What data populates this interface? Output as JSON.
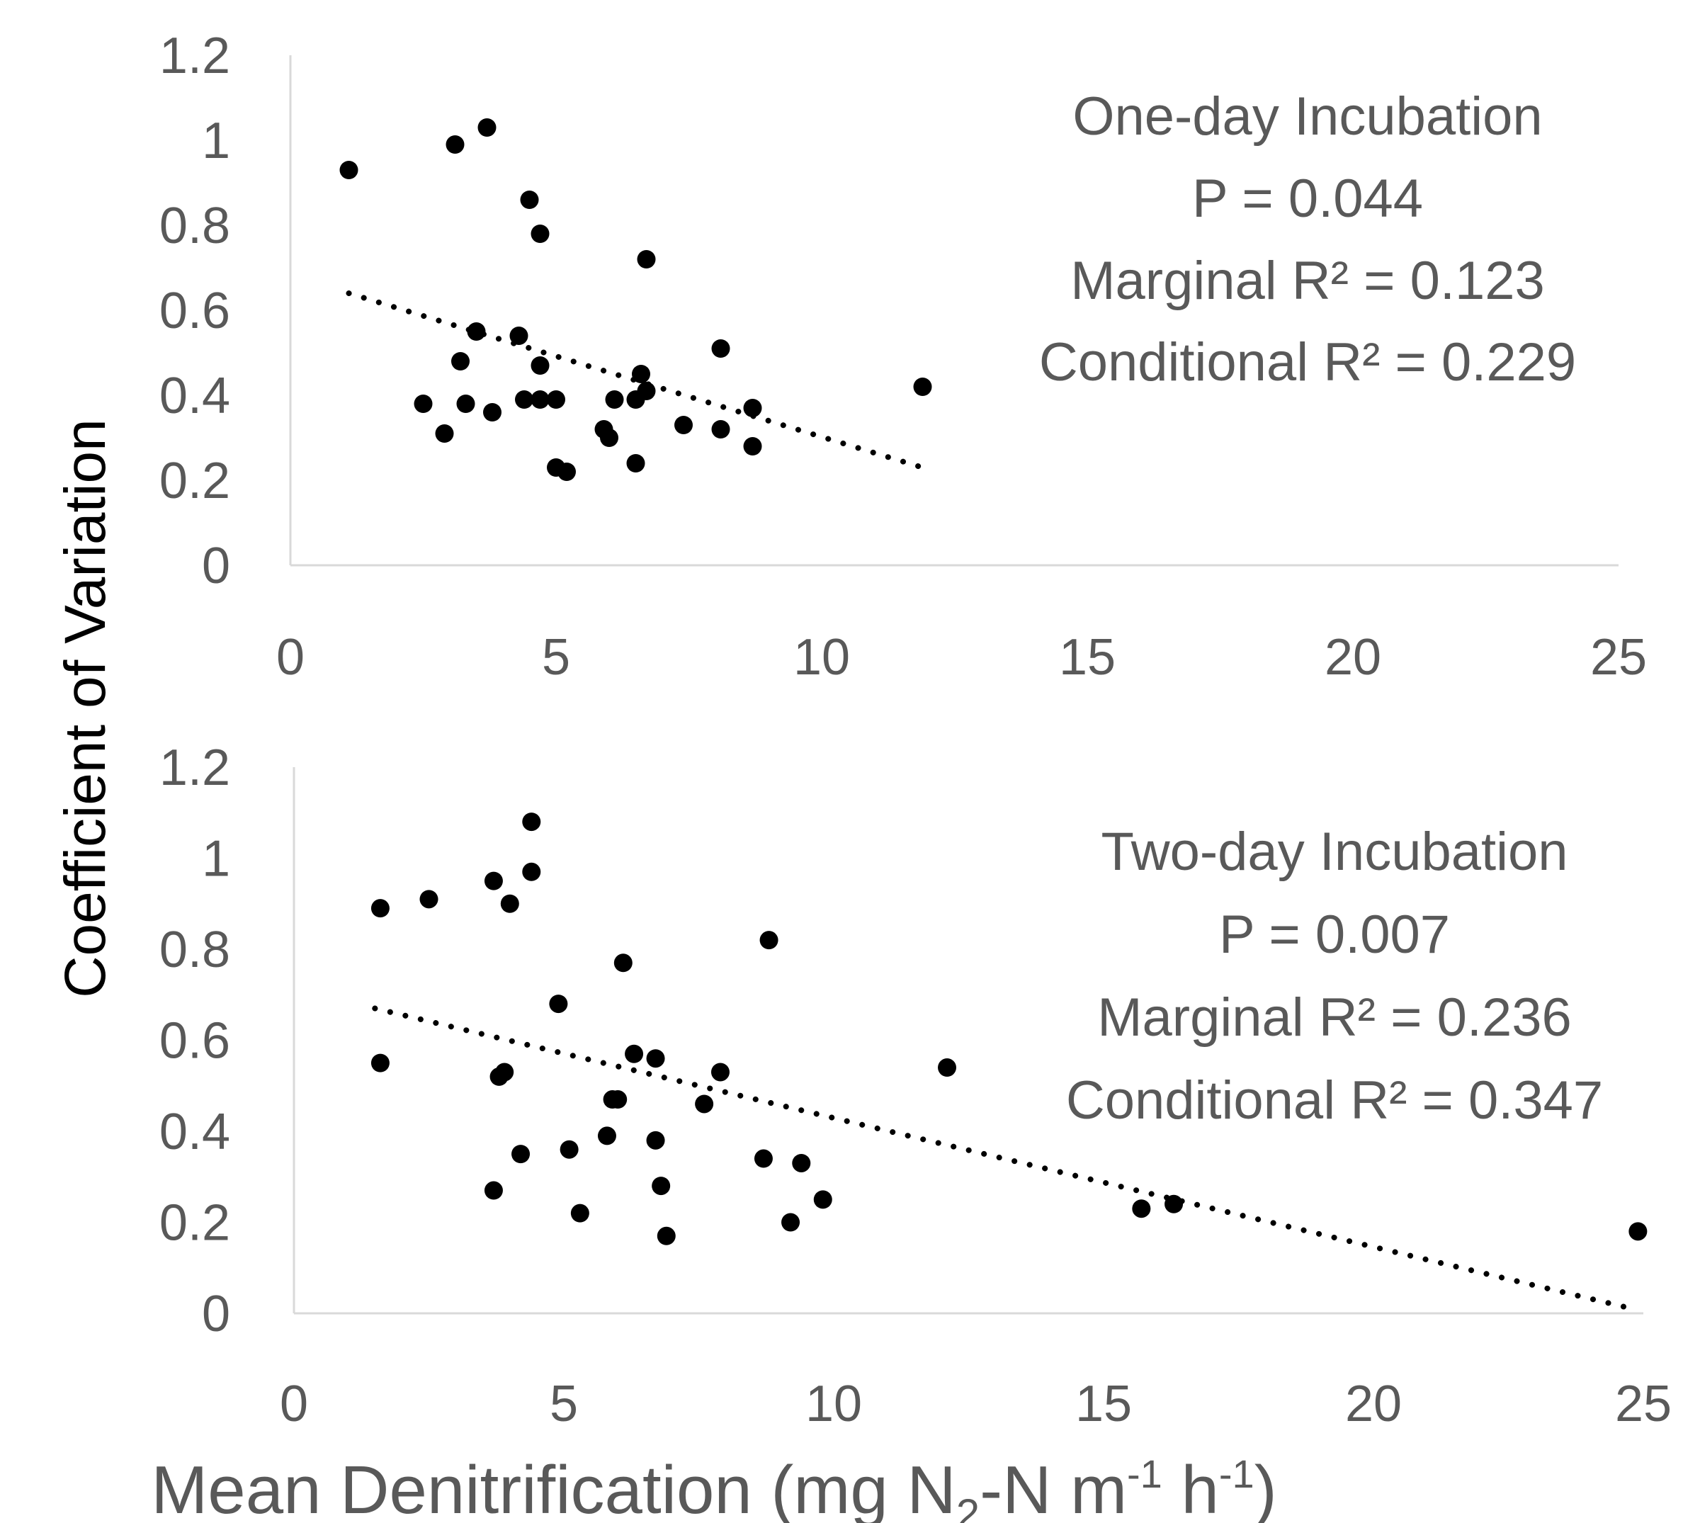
{
  "y_axis_title": "Coefficient of Variation",
  "x_axis_title": {
    "main": "Mean Denitrification (mg N",
    "sub": "2",
    "mid": "-N m",
    "sup1": "-1",
    "mid2": " h",
    "sup2": "-1",
    "end": ")"
  },
  "chart_data": [
    {
      "type": "scatter",
      "panel": "top",
      "xlim": [
        0,
        25
      ],
      "ylim": [
        0,
        1.2
      ],
      "xticks": [
        "0",
        "5",
        "10",
        "15",
        "20",
        "25"
      ],
      "yticks": [
        "0",
        "0.2",
        "0.4",
        "0.6",
        "0.8",
        "1",
        "1.2"
      ],
      "annotation": [
        "One-day Incubation",
        "P = 0.044",
        "Marginal R² = 0.123",
        "Conditional R² = 0.229"
      ],
      "trendline": {
        "x": [
          1.1,
          11.9
        ],
        "y": [
          0.64,
          0.23
        ]
      },
      "points": [
        [
          1.1,
          0.93
        ],
        [
          3.1,
          0.99
        ],
        [
          3.7,
          1.03
        ],
        [
          4.5,
          0.86
        ],
        [
          4.7,
          0.78
        ],
        [
          6.7,
          0.72
        ],
        [
          3.5,
          0.55
        ],
        [
          4.3,
          0.54
        ],
        [
          3.2,
          0.48
        ],
        [
          4.7,
          0.47
        ],
        [
          6.6,
          0.45
        ],
        [
          8.1,
          0.51
        ],
        [
          6.7,
          0.41
        ],
        [
          2.5,
          0.38
        ],
        [
          3.3,
          0.38
        ],
        [
          3.8,
          0.36
        ],
        [
          4.4,
          0.39
        ],
        [
          4.7,
          0.39
        ],
        [
          5.0,
          0.39
        ],
        [
          6.1,
          0.39
        ],
        [
          6.5,
          0.39
        ],
        [
          8.7,
          0.37
        ],
        [
          7.4,
          0.33
        ],
        [
          8.1,
          0.32
        ],
        [
          5.9,
          0.32
        ],
        [
          6.0,
          0.3
        ],
        [
          2.9,
          0.31
        ],
        [
          8.7,
          0.28
        ],
        [
          5.0,
          0.23
        ],
        [
          5.2,
          0.22
        ],
        [
          6.5,
          0.24
        ],
        [
          11.9,
          0.42
        ]
      ]
    },
    {
      "type": "scatter",
      "panel": "bottom",
      "xlim": [
        0,
        25
      ],
      "ylim": [
        0,
        1.2
      ],
      "xticks": [
        "0",
        "5",
        "10",
        "15",
        "20",
        "25"
      ],
      "yticks": [
        "0",
        "0.2",
        "0.4",
        "0.6",
        "0.8",
        "1",
        "1.2"
      ],
      "annotation": [
        "Two-day Incubation",
        "P = 0.007",
        "Marginal R² = 0.236",
        "Conditional R² = 0.347"
      ],
      "trendline": {
        "x": [
          1.5,
          24.8
        ],
        "y": [
          0.67,
          0.01
        ]
      },
      "points": [
        [
          1.6,
          0.89
        ],
        [
          2.5,
          0.91
        ],
        [
          3.7,
          0.95
        ],
        [
          4.4,
          1.08
        ],
        [
          4.4,
          0.97
        ],
        [
          4.0,
          0.9
        ],
        [
          8.8,
          0.82
        ],
        [
          6.1,
          0.77
        ],
        [
          4.9,
          0.68
        ],
        [
          6.3,
          0.57
        ],
        [
          6.7,
          0.56
        ],
        [
          7.9,
          0.53
        ],
        [
          1.6,
          0.55
        ],
        [
          3.8,
          0.52
        ],
        [
          3.9,
          0.53
        ],
        [
          5.9,
          0.47
        ],
        [
          6.0,
          0.47
        ],
        [
          7.6,
          0.46
        ],
        [
          12.1,
          0.54
        ],
        [
          5.8,
          0.39
        ],
        [
          6.7,
          0.38
        ],
        [
          5.1,
          0.36
        ],
        [
          4.2,
          0.35
        ],
        [
          8.7,
          0.34
        ],
        [
          9.4,
          0.33
        ],
        [
          3.7,
          0.27
        ],
        [
          6.8,
          0.28
        ],
        [
          5.3,
          0.22
        ],
        [
          6.9,
          0.17
        ],
        [
          9.2,
          0.2
        ],
        [
          9.8,
          0.25
        ],
        [
          15.7,
          0.23
        ],
        [
          16.3,
          0.24
        ],
        [
          24.9,
          0.18
        ]
      ]
    }
  ]
}
